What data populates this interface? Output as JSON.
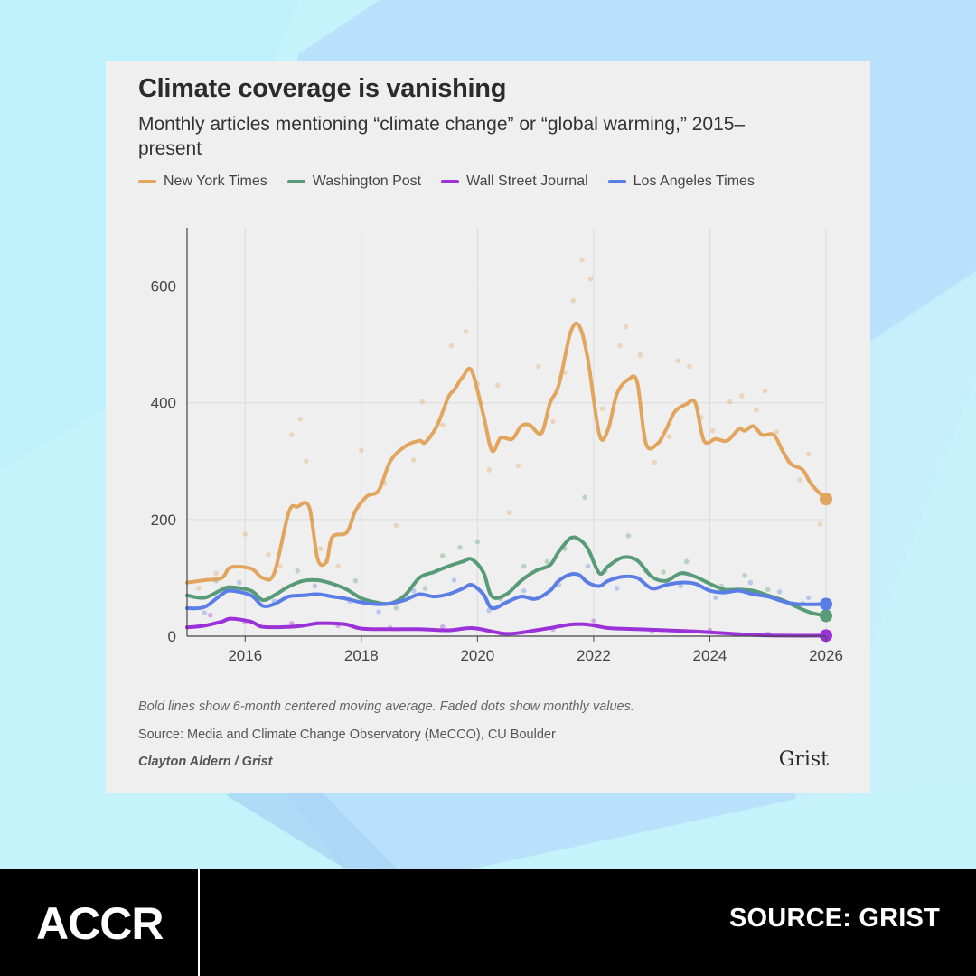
{
  "colors": {
    "background": "#c4f3fb",
    "card": "#efefef",
    "New York Times": "#e2a55e",
    "Washington Post": "#589b78",
    "Wall Street Journal": "#9b32d8",
    "Los Angeles Times": "#5b7ee6"
  },
  "card": {
    "note": "Bold lines show 6-month centered moving average. Faded dots show monthly values.",
    "source": "Source: Media and Climate Change Observatory (MeCCO), CU Boulder",
    "credit": "Clayton Aldern / Grist",
    "logo_text": "Grist"
  },
  "footer": {
    "logo_text": "ACCR",
    "source_label": "SOURCE: GRIST"
  },
  "chart_data": {
    "type": "line",
    "title": "Climate coverage is vanishing",
    "subtitle": "Monthly articles mentioning “climate change” or “global warming,” 2015–present",
    "xlabel": "",
    "ylabel": "",
    "x_ticks": [
      "2016",
      "2018",
      "2020",
      "2022",
      "2024",
      "2026"
    ],
    "y_ticks": [
      "0",
      "200",
      "400",
      "600"
    ],
    "xlim": [
      2015,
      2026
    ],
    "ylim": [
      0,
      700
    ],
    "grid": true,
    "legend_position": "top",
    "series": [
      {
        "name": "New York Times",
        "x": [
          2015.0,
          2015.3,
          2015.6,
          2015.75,
          2016.1,
          2016.3,
          2016.5,
          2016.75,
          2016.9,
          2017.1,
          2017.25,
          2017.4,
          2017.5,
          2017.75,
          2017.9,
          2018.1,
          2018.3,
          2018.5,
          2018.75,
          2019.0,
          2019.1,
          2019.3,
          2019.5,
          2019.6,
          2019.75,
          2019.9,
          2020.1,
          2020.25,
          2020.4,
          2020.6,
          2020.75,
          2020.9,
          2021.1,
          2021.25,
          2021.4,
          2021.6,
          2021.75,
          2021.9,
          2022.1,
          2022.25,
          2022.4,
          2022.6,
          2022.75,
          2022.9,
          2023.1,
          2023.25,
          2023.4,
          2023.6,
          2023.75,
          2023.9,
          2024.1,
          2024.3,
          2024.5,
          2024.6,
          2024.75,
          2024.9,
          2025.1,
          2025.25,
          2025.4,
          2025.6,
          2025.75,
          2026.0
        ],
        "values": [
          92,
          96,
          100,
          118,
          116,
          100,
          108,
          212,
          222,
          222,
          132,
          128,
          170,
          178,
          215,
          240,
          250,
          300,
          325,
          335,
          332,
          360,
          410,
          422,
          445,
          455,
          380,
          318,
          340,
          338,
          360,
          362,
          348,
          400,
          430,
          520,
          532,
          475,
          345,
          355,
          415,
          440,
          435,
          330,
          330,
          355,
          385,
          398,
          400,
          335,
          338,
          335,
          355,
          352,
          360,
          345,
          345,
          318,
          295,
          285,
          260,
          235
        ]
      },
      {
        "name": "Washington Post",
        "x": [
          2015.0,
          2015.3,
          2015.6,
          2015.75,
          2016.1,
          2016.3,
          2016.5,
          2016.75,
          2017.0,
          2017.25,
          2017.5,
          2017.75,
          2018.0,
          2018.25,
          2018.5,
          2018.75,
          2019.0,
          2019.25,
          2019.5,
          2019.75,
          2019.9,
          2020.1,
          2020.25,
          2020.5,
          2020.75,
          2021.0,
          2021.25,
          2021.4,
          2021.6,
          2021.75,
          2021.9,
          2022.1,
          2022.25,
          2022.5,
          2022.75,
          2023.0,
          2023.25,
          2023.5,
          2023.75,
          2024.0,
          2024.25,
          2024.5,
          2024.75,
          2025.0,
          2025.25,
          2025.5,
          2025.75,
          2026.0
        ],
        "values": [
          70,
          66,
          80,
          84,
          78,
          62,
          70,
          85,
          95,
          96,
          90,
          80,
          65,
          58,
          56,
          70,
          100,
          110,
          120,
          128,
          132,
          110,
          68,
          72,
          95,
          112,
          122,
          145,
          168,
          166,
          150,
          108,
          120,
          135,
          130,
          102,
          95,
          108,
          102,
          90,
          80,
          80,
          78,
          70,
          62,
          50,
          40,
          35
        ]
      },
      {
        "name": "Wall Street Journal",
        "x": [
          2015.0,
          2015.3,
          2015.6,
          2015.75,
          2016.1,
          2016.3,
          2016.75,
          2017.0,
          2017.25,
          2017.5,
          2017.75,
          2018.0,
          2018.5,
          2019.0,
          2019.5,
          2019.9,
          2020.25,
          2020.5,
          2020.75,
          2021.0,
          2021.25,
          2021.6,
          2021.9,
          2022.25,
          2022.75,
          2023.25,
          2023.75,
          2024.25,
          2024.75,
          2025.25,
          2026.0
        ],
        "values": [
          15,
          18,
          25,
          30,
          25,
          16,
          16,
          18,
          22,
          22,
          20,
          13,
          12,
          12,
          10,
          14,
          8,
          4,
          6,
          10,
          14,
          20,
          20,
          14,
          12,
          10,
          8,
          5,
          2,
          1,
          1
        ]
      },
      {
        "name": "Los Angeles Times",
        "x": [
          2015.0,
          2015.3,
          2015.6,
          2015.75,
          2016.1,
          2016.3,
          2016.5,
          2016.75,
          2017.0,
          2017.25,
          2017.5,
          2017.75,
          2018.0,
          2018.25,
          2018.5,
          2018.75,
          2019.0,
          2019.25,
          2019.5,
          2019.75,
          2019.9,
          2020.1,
          2020.25,
          2020.5,
          2020.75,
          2021.0,
          2021.25,
          2021.4,
          2021.6,
          2021.75,
          2021.9,
          2022.1,
          2022.25,
          2022.5,
          2022.75,
          2023.0,
          2023.25,
          2023.5,
          2023.75,
          2024.0,
          2024.25,
          2024.5,
          2024.75,
          2025.0,
          2025.25,
          2025.5,
          2026.0
        ],
        "values": [
          48,
          50,
          72,
          78,
          70,
          52,
          55,
          68,
          70,
          72,
          68,
          64,
          58,
          55,
          56,
          62,
          72,
          68,
          72,
          82,
          88,
          72,
          48,
          58,
          68,
          64,
          78,
          95,
          106,
          105,
          92,
          86,
          95,
          102,
          100,
          82,
          88,
          92,
          90,
          78,
          75,
          78,
          72,
          68,
          60,
          55,
          55
        ]
      }
    ],
    "scatter_dots": [
      {
        "series": "New York Times",
        "x": [
          2015.2,
          2015.5,
          2016.0,
          2016.4,
          2016.6,
          2016.8,
          2016.95,
          2017.05,
          2017.3,
          2017.6,
          2018.0,
          2018.4,
          2018.6,
          2018.9,
          2019.05,
          2019.4,
          2019.55,
          2019.8,
          2020.0,
          2020.2,
          2020.35,
          2020.55,
          2020.7,
          2021.05,
          2021.3,
          2021.5,
          2021.65,
          2021.8,
          2021.95,
          2022.15,
          2022.45,
          2022.55,
          2022.8,
          2023.05,
          2023.3,
          2023.45,
          2023.65,
          2023.85,
          2024.05,
          2024.35,
          2024.55,
          2024.8,
          2024.95,
          2025.15,
          2025.35,
          2025.55,
          2025.7,
          2025.9
        ],
        "values": [
          82,
          108,
          175,
          140,
          120,
          345,
          372,
          300,
          150,
          120,
          318,
          262,
          190,
          302,
          402,
          362,
          498,
          522,
          432,
          285,
          430,
          212,
          292,
          462,
          368,
          452,
          575,
          645,
          612,
          390,
          498,
          530,
          482,
          298,
          342,
          472,
          462,
          375,
          352,
          402,
          412,
          388,
          420,
          350,
          300,
          268,
          312,
          192
        ]
      },
      {
        "series": "Washington Post",
        "x": [
          2015.5,
          2016.2,
          2016.9,
          2017.4,
          2017.9,
          2018.6,
          2019.1,
          2019.4,
          2019.7,
          2020.0,
          2020.4,
          2020.8,
          2021.2,
          2021.5,
          2021.85,
          2022.2,
          2022.6,
          2023.2,
          2023.6,
          2024.2,
          2024.6,
          2025.0,
          2025.6
        ],
        "values": [
          95,
          70,
          112,
          128,
          95,
          48,
          82,
          138,
          152,
          162,
          64,
          120,
          128,
          150,
          238,
          112,
          172,
          110,
          128,
          86,
          104,
          80,
          56
        ]
      },
      {
        "series": "Wall Street Journal",
        "x": [
          2015.4,
          2016.0,
          2016.8,
          2017.6,
          2018.5,
          2019.4,
          2020.4,
          2021.3,
          2022.0,
          2023.0,
          2024.0,
          2025.0
        ],
        "values": [
          36,
          24,
          22,
          18,
          14,
          16,
          4,
          12,
          26,
          8,
          10,
          4
        ]
      },
      {
        "series": "Los Angeles Times",
        "x": [
          2015.3,
          2015.9,
          2016.5,
          2017.2,
          2017.8,
          2018.3,
          2018.9,
          2019.6,
          2020.2,
          2020.8,
          2021.4,
          2021.9,
          2022.4,
          2022.9,
          2023.5,
          2024.1,
          2024.7,
          2025.2,
          2025.7
        ],
        "values": [
          40,
          92,
          60,
          86,
          60,
          42,
          78,
          96,
          44,
          78,
          88,
          120,
          82,
          112,
          86,
          66,
          92,
          76,
          66
        ]
      }
    ]
  }
}
